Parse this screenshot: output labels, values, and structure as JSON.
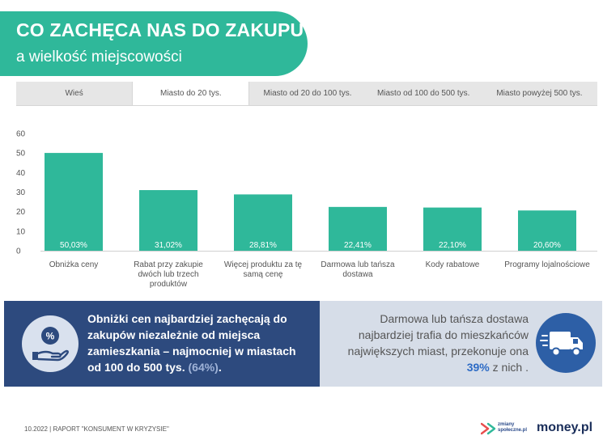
{
  "title": {
    "main": "CO ZACHĘCA NAS DO ZAKUPU",
    "sub": "a wielkość miejscowości"
  },
  "tabs": [
    {
      "label": "Wieś",
      "active": false
    },
    {
      "label": "Miasto do 20 tys.",
      "active": true
    },
    {
      "label": "Miasto od 20 do 100 tys.",
      "active": false
    },
    {
      "label": "Miasto od 100 do 500 tys.",
      "active": false
    },
    {
      "label": "Miasto powyżej 500 tys.",
      "active": false
    }
  ],
  "chart_data": {
    "type": "bar",
    "categories": [
      "Obniżka ceny",
      "Rabat przy zakupie dwóch lub trzech produktów",
      "Więcej produktu za tę samą cenę",
      "Darmowa lub tańsza dostawa",
      "Kody rabatowe",
      "Programy lojalnościowe"
    ],
    "values": [
      50.03,
      31.02,
      28.81,
      22.41,
      22.1,
      20.6
    ],
    "data_labels": [
      "50,03%",
      "31,02%",
      "28,81%",
      "22,41%",
      "22,10%",
      "20,60%"
    ],
    "yticks": [
      "0",
      "10",
      "20",
      "30",
      "40",
      "50",
      "60"
    ],
    "ylim": [
      0,
      60
    ],
    "bar_color": "#2fb89a",
    "grid": false
  },
  "panel_left": {
    "text": "Obniżki cen najbardziej zachęcają do zakupów niezależnie od miejsca zamieszkania – najmocniej w miastach od 100 do 500 tys.",
    "highlight": "(64%)",
    "end": ".",
    "icon": "hand-percent-icon"
  },
  "panel_right": {
    "text": "Darmowa lub tańsza dostawa najbardziej trafia do mieszkańców największych miast, przekonuje ona",
    "highlight": "39%",
    "end": "z nich .",
    "icon": "delivery-truck-icon"
  },
  "footer": {
    "text": "10.2022 | RAPORT \"KONSUMENT W KRYZYSIE\"",
    "logo_zmiany_line1": "zmiany",
    "logo_zmiany_line2": "społeczne.pl",
    "logo_money": "money.pl"
  },
  "colors": {
    "teal": "#2fb89a",
    "navy": "#2d4a7e",
    "light_panel": "#d6dde8",
    "accent_blue": "#2d6bc5"
  }
}
